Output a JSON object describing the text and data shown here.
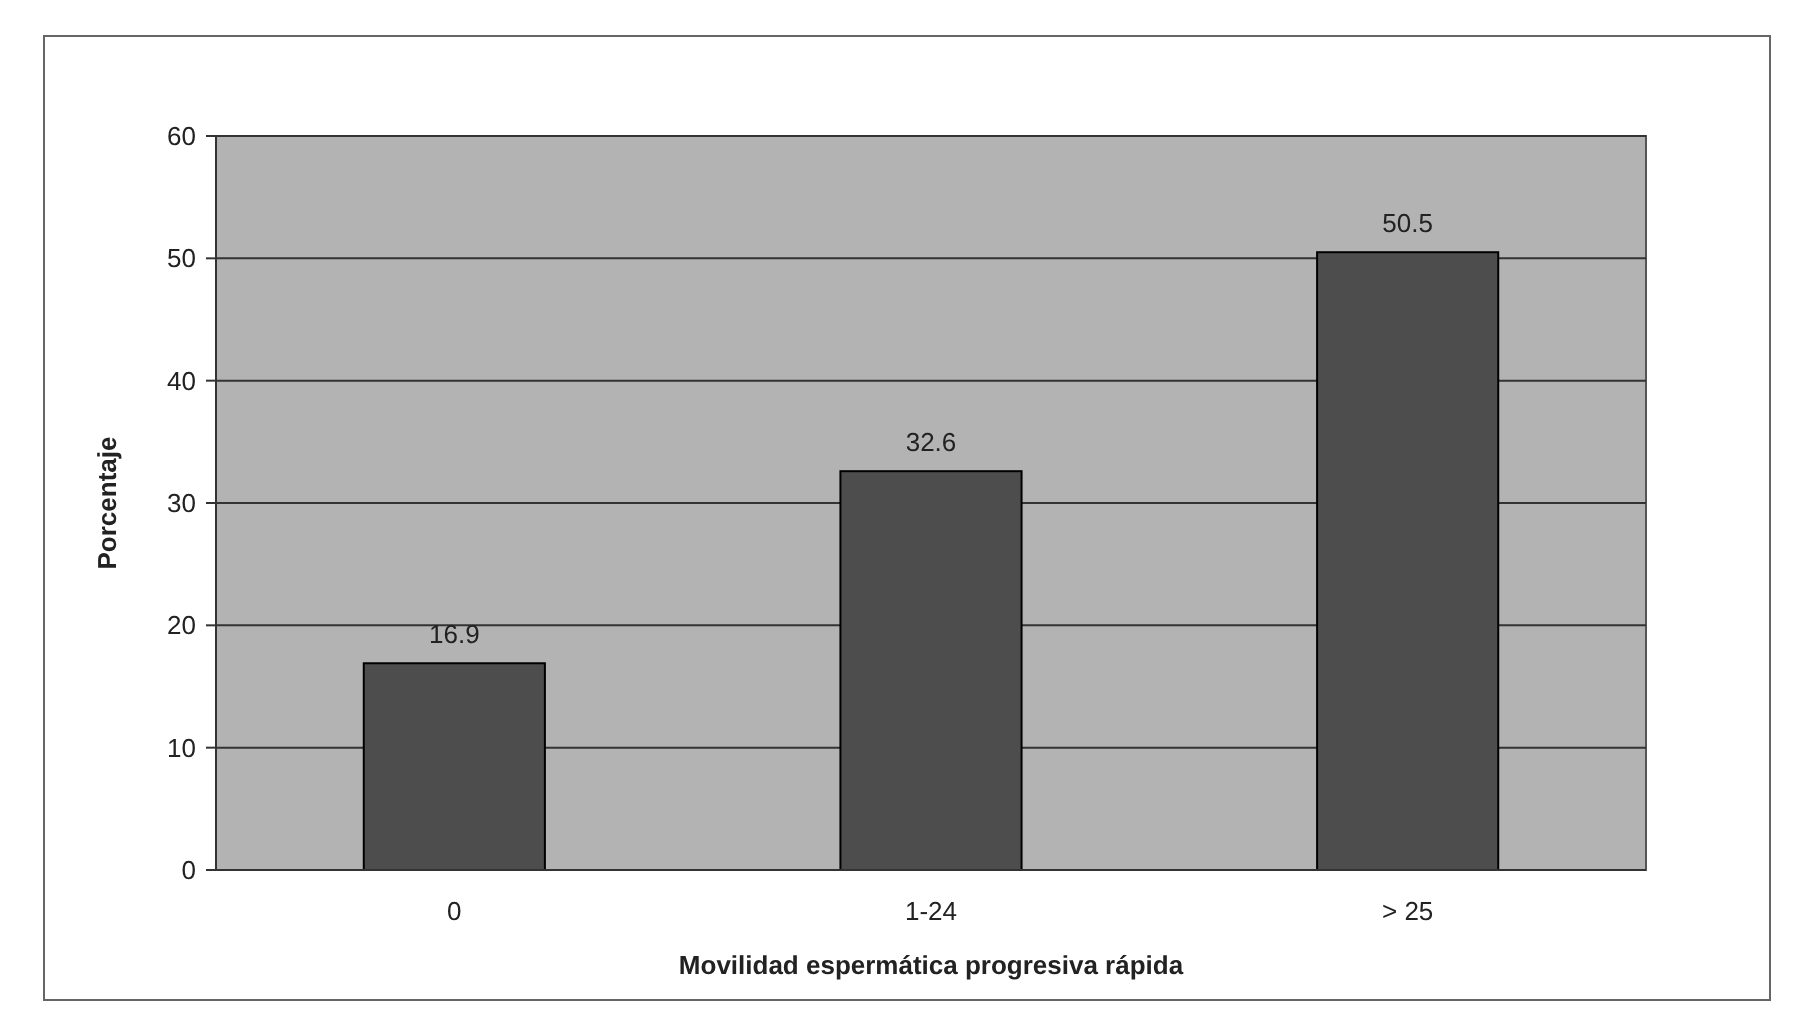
{
  "chart_data": {
    "type": "bar",
    "xlabel": "Movilidad espermática progresiva rápida",
    "ylabel": "Porcentaje",
    "categories": [
      "0",
      "1-24",
      "> 25"
    ],
    "values": [
      16.9,
      32.6,
      50.5
    ],
    "color": "#4d4d4d",
    "ylim": [
      0,
      60
    ],
    "yticks": [
      0,
      10,
      20,
      30,
      40,
      50,
      60
    ],
    "grid": "y",
    "data_labels": true
  }
}
